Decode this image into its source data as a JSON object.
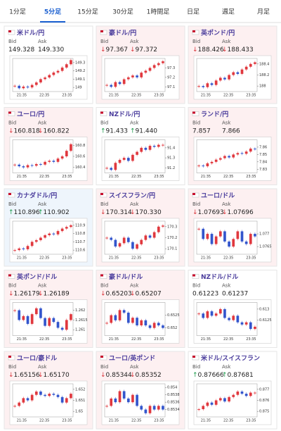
{
  "tabs": [
    "1分足",
    "5分足",
    "15分足",
    "30分足",
    "1時間足",
    "日足",
    "週足",
    "月足"
  ],
  "active_tab": 1,
  "bid_label": "Bid",
  "ask_label": "Ask",
  "x_labels": [
    "21:35",
    "22:35",
    "23:35"
  ],
  "cards": [
    {
      "title": "米ドル/円",
      "bg": "#ffffff",
      "bid": {
        "value": "149.328"
      },
      "ask": {
        "value": "149.330"
      },
      "ylim": [
        148.95,
        149.35
      ],
      "yticks": [
        149.3,
        149.2,
        149.1,
        149
      ],
      "closes": [
        149.02,
        148.99,
        149.01,
        149.0,
        149.03,
        149.06,
        149.1,
        149.12,
        149.15,
        149.18,
        149.2,
        149.24,
        149.28,
        149.33
      ]
    },
    {
      "title": "豪ドル/円",
      "bg": "#fdf0f1",
      "trend": "down",
      "bid": {
        "arrow": "↓",
        "value": "97.367"
      },
      "ask": {
        "arrow": "↓",
        "value": "97.372"
      },
      "ylim": [
        97.05,
        97.4
      ],
      "yticks": [
        97.3,
        97.2,
        97.1
      ],
      "closes": [
        97.12,
        97.1,
        97.15,
        97.13,
        97.18,
        97.2,
        97.22,
        97.2,
        97.25,
        97.27,
        97.3,
        97.33,
        97.35,
        97.37
      ]
    },
    {
      "title": "英ポンド/円",
      "bg": "#fdf0f1",
      "trend": "down",
      "bid": {
        "arrow": "↓",
        "value": "188.426"
      },
      "ask": {
        "arrow": "↓",
        "value": "188.433"
      },
      "ylim": [
        187.9,
        188.5
      ],
      "yticks": [
        188.4,
        188.2,
        188
      ],
      "closes": [
        188.0,
        187.98,
        188.05,
        188.02,
        188.1,
        188.15,
        188.12,
        188.2,
        188.25,
        188.22,
        188.3,
        188.35,
        188.4,
        188.43
      ]
    },
    {
      "title": "ユーロ/円",
      "bg": "#fdf0f1",
      "trend": "down",
      "bid": {
        "arrow": "↓",
        "value": "160.818"
      },
      "ask": {
        "arrow": "↓",
        "value": "160.822"
      },
      "ylim": [
        160.3,
        160.9
      ],
      "yticks": [
        160.8,
        160.6,
        160.4
      ],
      "closes": [
        160.45,
        160.42,
        160.4,
        160.44,
        160.43,
        160.46,
        160.45,
        160.5,
        160.52,
        160.5,
        160.56,
        160.6,
        160.7,
        160.82
      ]
    },
    {
      "title": "NZドル/円",
      "bg": "#ffffff",
      "trend": "up",
      "bid": {
        "arrow": "↑",
        "value": "91.433"
      },
      "ask": {
        "arrow": "↑",
        "value": "91.440"
      },
      "ylim": [
        91.15,
        91.48
      ],
      "yticks": [
        91.4,
        91.3,
        91.2
      ],
      "closes": [
        91.2,
        91.18,
        91.25,
        91.28,
        91.3,
        91.27,
        91.33,
        91.36,
        91.4,
        91.38,
        91.42,
        91.41,
        91.43,
        91.43
      ]
    },
    {
      "title": "ランド/円",
      "bg": "#fdf0f1",
      "bid": {
        "value": "7.857"
      },
      "ask": {
        "value": "7.866"
      },
      "ylim": [
        7.825,
        7.87
      ],
      "yticks": [
        7.86,
        7.85,
        7.84,
        7.83
      ],
      "closes": [
        7.835,
        7.834,
        7.838,
        7.84,
        7.843,
        7.845,
        7.848,
        7.846,
        7.85,
        7.852,
        7.851,
        7.854,
        7.858,
        7.857
      ]
    },
    {
      "title": "カナダドル/円",
      "bg": "#eef5fc",
      "trend": "up",
      "bid": {
        "arrow": "↑",
        "value": "110.896"
      },
      "ask": {
        "arrow": "↑",
        "value": "110.902"
      },
      "ylim": [
        110.55,
        110.95
      ],
      "yticks": [
        110.9,
        110.8,
        110.7,
        110.6
      ],
      "closes": [
        110.6,
        110.62,
        110.61,
        110.65,
        110.7,
        110.72,
        110.75,
        110.78,
        110.8,
        110.79,
        110.83,
        110.86,
        110.88,
        110.9
      ]
    },
    {
      "title": "スイスフラン/円",
      "bg": "#fdf0f1",
      "trend": "down",
      "bid": {
        "arrow": "↓",
        "value": "170.314"
      },
      "ask": {
        "arrow": "↓",
        "value": "170.330"
      },
      "ylim": [
        170.05,
        170.35
      ],
      "yticks": [
        170.3,
        170.2,
        170.1
      ],
      "closes": [
        170.2,
        170.18,
        170.12,
        170.15,
        170.2,
        170.16,
        170.1,
        170.14,
        170.18,
        170.22,
        170.2,
        170.25,
        170.3,
        170.31
      ]
    },
    {
      "title": "ユーロ/ドル",
      "bg": "#fdf0f1",
      "trend": "down",
      "bid": {
        "arrow": "↓",
        "value": "1.07693"
      },
      "ask": {
        "arrow": "↓",
        "value": "1.07696"
      },
      "ylim": [
        1.0762,
        1.0775
      ],
      "yticks": [
        1.077,
        1.0765
      ],
      "closes": [
        1.0772,
        1.0768,
        1.077,
        1.0766,
        1.0769,
        1.0771,
        1.0767,
        1.0765,
        1.0768,
        1.0771,
        1.0767,
        1.0766,
        1.077,
        1.0769
      ]
    },
    {
      "title": "英ポンド/ドル",
      "bg": "#fdf0f1",
      "trend": "down",
      "bid": {
        "arrow": "↓",
        "value": "1.26179"
      },
      "ask": {
        "arrow": "↓",
        "value": "1.26189"
      },
      "ylim": [
        1.2607,
        1.2624
      ],
      "yticks": [
        1.262,
        1.2615,
        1.261
      ],
      "closes": [
        1.262,
        1.2615,
        1.2617,
        1.2613,
        1.2618,
        1.2621,
        1.2616,
        1.2612,
        1.2616,
        1.2614,
        1.2611,
        1.261,
        1.2615,
        1.2618
      ]
    },
    {
      "title": "豪ドル/ドル",
      "bg": "#fdf0f1",
      "trend": "down",
      "bid": {
        "arrow": "↓",
        "value": "0.65203"
      },
      "ask": {
        "arrow": "↓",
        "value": "0.65207"
      },
      "ylim": [
        0.6517,
        0.653
      ],
      "yticks": [
        0.6525,
        0.652
      ],
      "closes": [
        0.6522,
        0.6525,
        0.6523,
        0.6527,
        0.6526,
        0.6522,
        0.6524,
        0.6521,
        0.6523,
        0.6521,
        0.652,
        0.6522,
        0.6521,
        0.652
      ]
    },
    {
      "title": "NZドル/ドル",
      "bg": "#ffffff",
      "bid": {
        "value": "0.61223"
      },
      "ask": {
        "value": "0.61237"
      },
      "ylim": [
        0.6118,
        0.6133
      ],
      "yticks": [
        0.613,
        0.6125
      ],
      "closes": [
        0.6128,
        0.6126,
        0.6129,
        0.6127,
        0.6128,
        0.613,
        0.6126,
        0.6125,
        0.6127,
        0.6124,
        0.6123,
        0.6124,
        0.6121,
        0.6122
      ]
    },
    {
      "title": "ユーロ/豪ドル",
      "bg": "#fdf0f1",
      "trend": "down",
      "bid": {
        "arrow": "↓",
        "value": "1.65156"
      },
      "ask": {
        "arrow": "↓",
        "value": "1.65170"
      },
      "ylim": [
        1.6495,
        1.6525
      ],
      "yticks": [
        1.652,
        1.651,
        1.65
      ],
      "closes": [
        1.6505,
        1.6508,
        1.6512,
        1.651,
        1.6515,
        1.6518,
        1.6515,
        1.6514,
        1.6516,
        1.6515,
        1.6513,
        1.6508,
        1.6512,
        1.6516
      ]
    },
    {
      "title": "ユーロ/英ポンド",
      "bg": "#fdf0f1",
      "trend": "down",
      "bid": {
        "arrow": "↓",
        "value": "0.85344"
      },
      "ask": {
        "arrow": "↓",
        "value": "0.85352"
      },
      "ylim": [
        0.8532,
        0.8541
      ],
      "yticks": [
        0.854,
        0.8538,
        0.8536,
        0.8534
      ],
      "closes": [
        0.8535,
        0.8537,
        0.8536,
        0.8539,
        0.8537,
        0.8536,
        0.8538,
        0.8535,
        0.8534,
        0.8533,
        0.8535,
        0.8534,
        0.8535,
        0.8534
      ]
    },
    {
      "title": "米ドル/スイスフラン",
      "bg": "#ffffff",
      "trend": "up",
      "bid": {
        "arrow": "↑",
        "value": "0.87666"
      },
      "ask": {
        "arrow": "↑",
        "value": "0.87681"
      },
      "ylim": [
        0.8745,
        0.8775
      ],
      "yticks": [
        0.877,
        0.876,
        0.875
      ],
      "closes": [
        0.8752,
        0.8755,
        0.8758,
        0.8756,
        0.876,
        0.8762,
        0.8759,
        0.8763,
        0.8765,
        0.8768,
        0.8766,
        0.8764,
        0.8767,
        0.8767
      ]
    }
  ]
}
